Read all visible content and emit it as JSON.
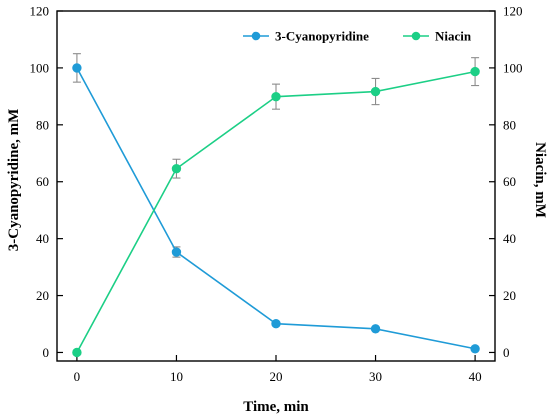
{
  "chart_data": {
    "type": "line",
    "title": "",
    "xlabel": "Time, min",
    "ylabel_left": "3-Cyanopyridine, mM",
    "ylabel_right": "Niacin, mM",
    "x": [
      0,
      10,
      20,
      30,
      40
    ],
    "xlim": [
      -2,
      42
    ],
    "ylim": [
      -3,
      120
    ],
    "x_ticks": [
      0,
      10,
      20,
      30,
      40
    ],
    "y_ticks": [
      0,
      20,
      40,
      60,
      80,
      100,
      120
    ],
    "y_ticks_right": [
      0,
      20,
      40,
      60,
      80,
      100,
      120
    ],
    "grid": false,
    "legend": {
      "placement": "top-right",
      "entries": [
        "3-Cyanopyridine",
        "Niacin"
      ]
    },
    "series": [
      {
        "name": "3-Cyanopyridine",
        "color": "#1f9bd7",
        "values": [
          100,
          35.3,
          10.1,
          8.3,
          1.3
        ],
        "errors": [
          5,
          1.8,
          0.6,
          0.5,
          0.2
        ],
        "axis": "left"
      },
      {
        "name": "Niacin",
        "color": "#1ccf86",
        "values": [
          0,
          64.6,
          89.9,
          91.7,
          98.7
        ],
        "errors": [
          0,
          3.3,
          4.4,
          4.6,
          4.9
        ],
        "axis": "right"
      }
    ]
  }
}
